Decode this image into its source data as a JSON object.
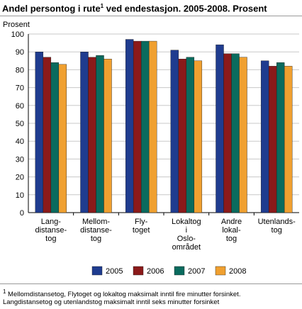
{
  "title": {
    "main": "Andel persontog i rute",
    "footnote_marker": "1",
    "rest": " ved endestasjon. 2005-2008. Prosent"
  },
  "footnote": {
    "marker": "1",
    "line1": "Mellomdistansetog, Flytoget og lokaltog maksimalt inntil fire minutter forsinket.",
    "line2": "Langdistansetog og utenlandstog maksimalt inntil seks minutter forsinket"
  },
  "colors": {
    "2005": "#1f3c8f",
    "2006": "#8b1a1a",
    "2007": "#0a6b5e",
    "2008": "#f0a030"
  },
  "chart_data": {
    "type": "bar",
    "ylabel": "Prosent",
    "ylim": [
      0,
      100
    ],
    "yticks": [
      0,
      10,
      20,
      30,
      40,
      50,
      60,
      70,
      80,
      90,
      100
    ],
    "grid": true,
    "legend_position": "bottom",
    "categories": [
      [
        "Lang-",
        "distanse-",
        "tog"
      ],
      [
        "Mellom-",
        "distanse-",
        "tog"
      ],
      [
        "Fly-",
        "toget"
      ],
      [
        "Lokaltog",
        "i",
        "Oslo-",
        "området"
      ],
      [
        "Andre",
        "lokal-",
        "tog"
      ],
      [
        "Utenlands-",
        "tog"
      ]
    ],
    "series": [
      {
        "name": "2005",
        "values": [
          90,
          90,
          97,
          91,
          94,
          85
        ]
      },
      {
        "name": "2006",
        "values": [
          87,
          87,
          96,
          86,
          89,
          82
        ]
      },
      {
        "name": "2007",
        "values": [
          84,
          88,
          96,
          87,
          89,
          84
        ]
      },
      {
        "name": "2008",
        "values": [
          83,
          86,
          96,
          85,
          87,
          82
        ]
      }
    ]
  }
}
